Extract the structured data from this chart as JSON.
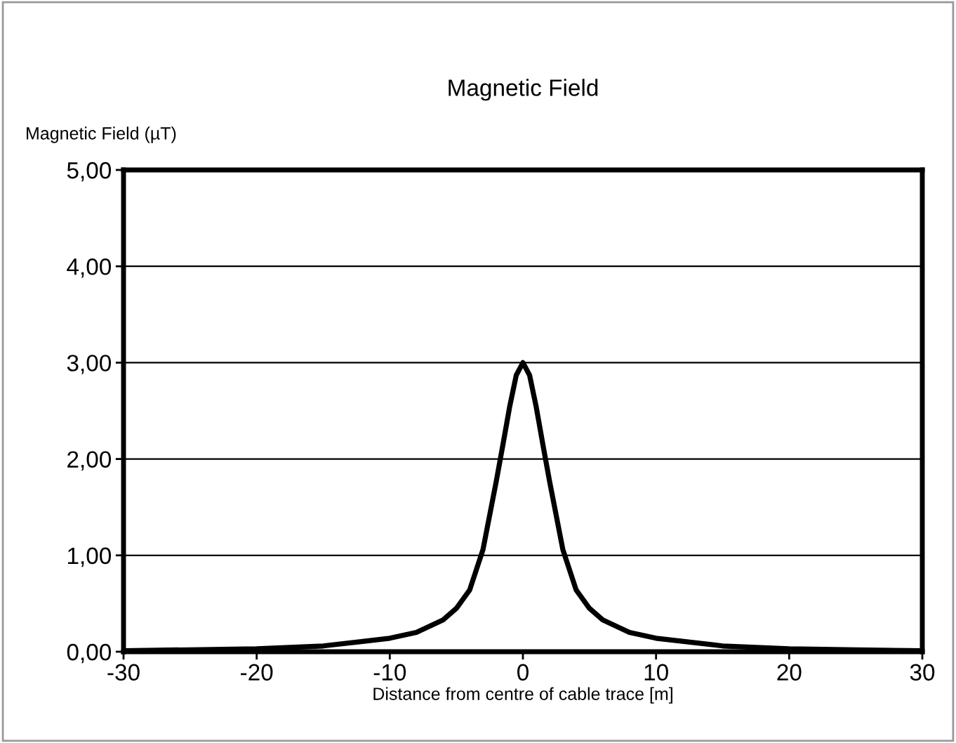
{
  "chart_data": {
    "type": "line",
    "title": "Magnetic Field",
    "xlabel": "Distance from centre of cable trace [m]",
    "ylabel": "Magnetic Field (µT)",
    "x": [
      -30,
      -25,
      -20,
      -15,
      -10,
      -8,
      -6,
      -5,
      -4,
      -3,
      -2,
      -1.5,
      -1,
      -0.5,
      0,
      0.5,
      1,
      1.5,
      2,
      3,
      4,
      5,
      6,
      8,
      10,
      15,
      20,
      25,
      30
    ],
    "series": [
      {
        "color": "#000000",
        "values": [
          0.01,
          0.02,
          0.03,
          0.06,
          0.14,
          0.2,
          0.33,
          0.45,
          0.64,
          1.06,
          1.77,
          2.15,
          2.54,
          2.87,
          3.0,
          2.87,
          2.54,
          2.15,
          1.77,
          1.06,
          0.64,
          0.45,
          0.33,
          0.2,
          0.14,
          0.06,
          0.03,
          0.02,
          0.01
        ]
      }
    ],
    "xlim": [
      -30,
      30
    ],
    "xticks": [
      -30,
      -20,
      -10,
      0,
      10,
      20,
      30
    ],
    "ylim": [
      0,
      5
    ],
    "yticks": [
      {
        "value": 0,
        "label": "0,00"
      },
      {
        "value": 1,
        "label": "1,00"
      },
      {
        "value": 2,
        "label": "2,00"
      },
      {
        "value": 3,
        "label": "3,00"
      },
      {
        "value": 4,
        "label": "4,00"
      },
      {
        "value": 5,
        "label": "5,00"
      }
    ],
    "grid": "y",
    "marker": "none",
    "line_style": "solid",
    "legend": false
  }
}
